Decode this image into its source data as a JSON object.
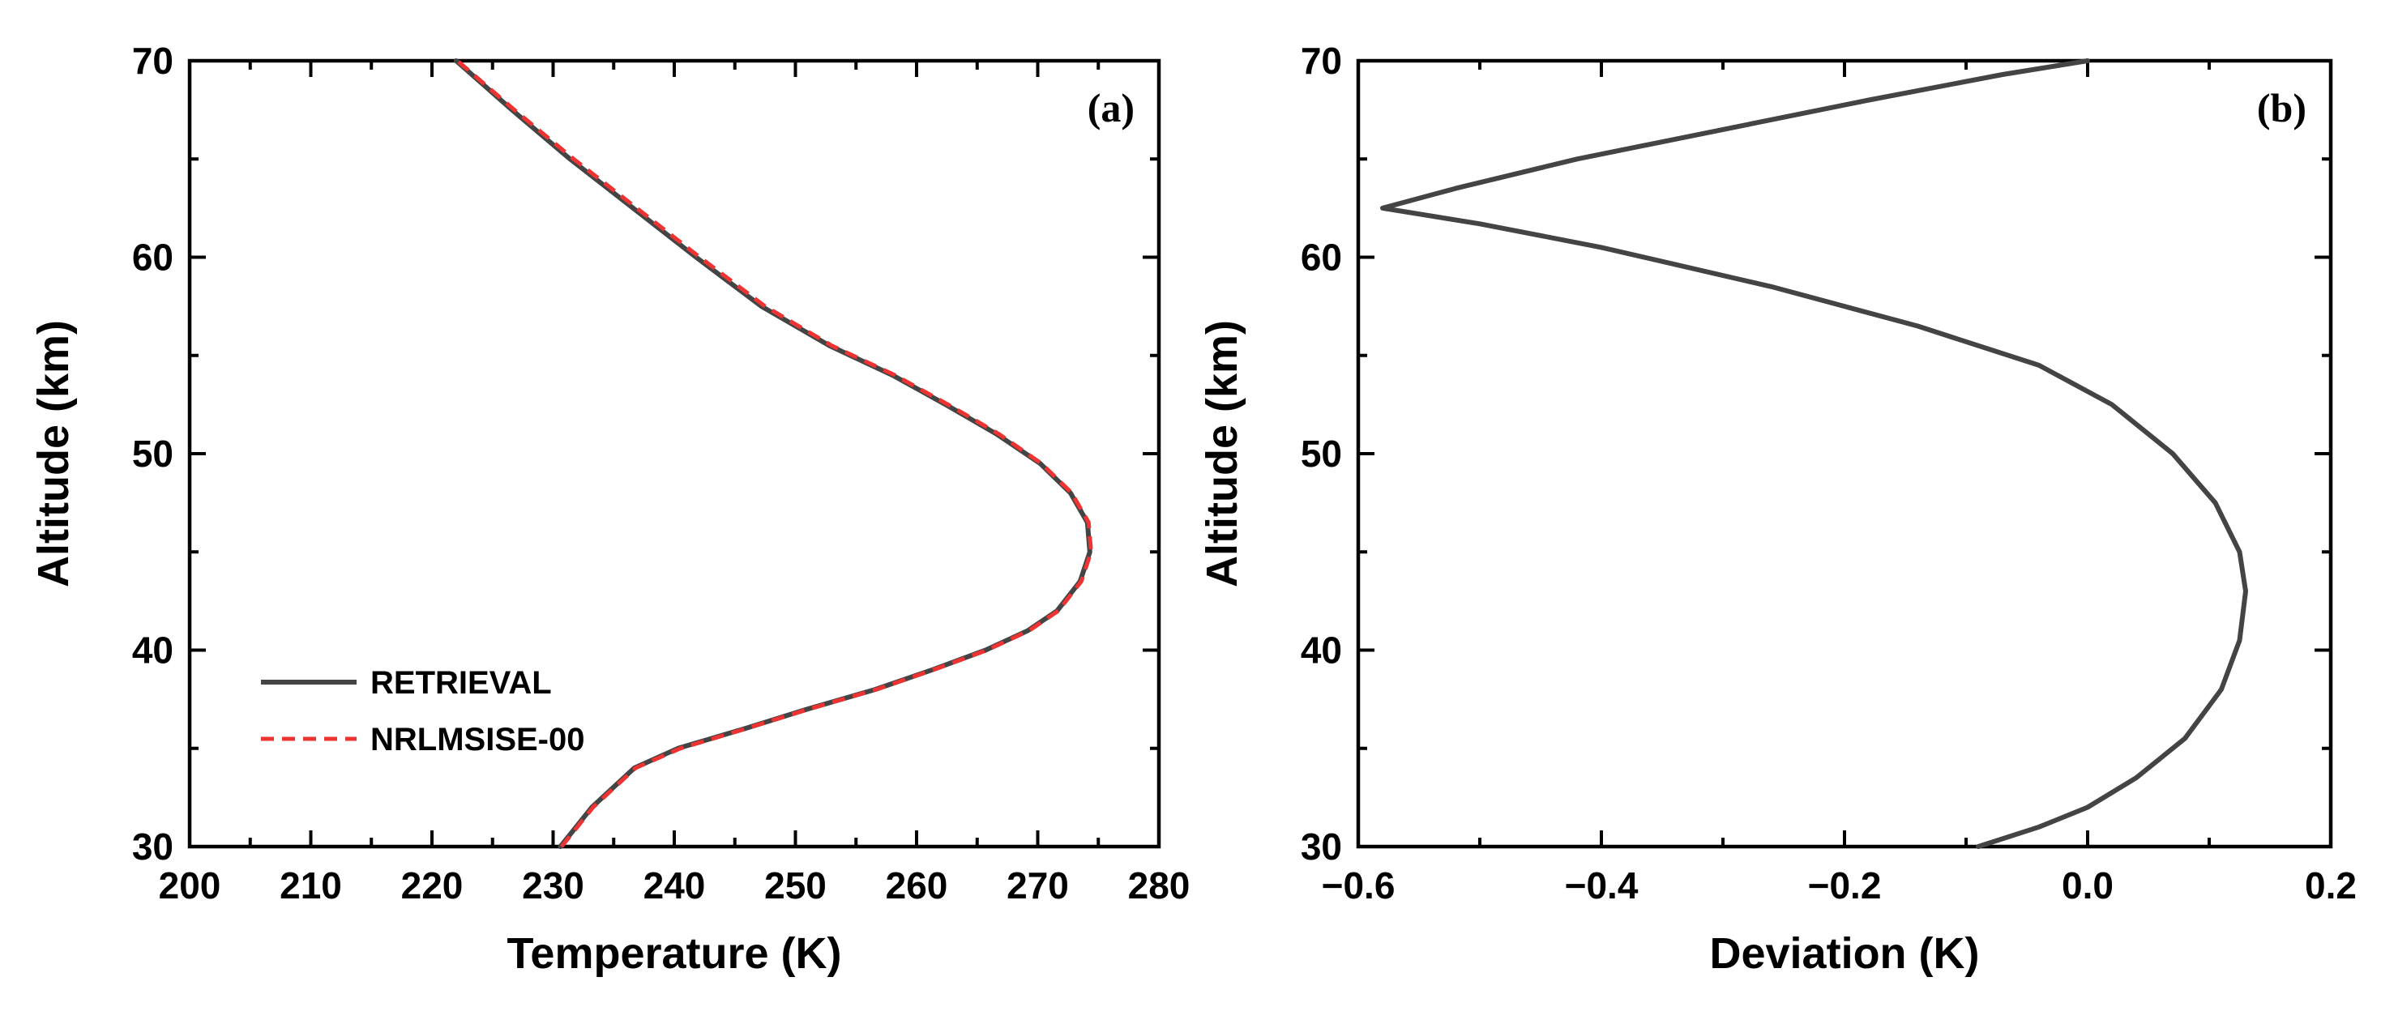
{
  "chart_data": [
    {
      "type": "line",
      "panel_label": "(a)",
      "xlabel": "Temperature (K)",
      "ylabel": "Altitude (km)",
      "xlim": [
        200,
        280
      ],
      "ylim": [
        30,
        70
      ],
      "xticks": [
        200,
        210,
        220,
        230,
        240,
        250,
        260,
        270,
        280
      ],
      "yticks": [
        30,
        40,
        50,
        60,
        70
      ],
      "legend_position": "lower-left",
      "series": [
        {
          "name": "RETRIEVAL",
          "color": "#444444",
          "style": "solid",
          "x": [
            230.6,
            233.2,
            236.7,
            240.3,
            245.8,
            251.0,
            256.6,
            261.3,
            265.7,
            269.2,
            271.6,
            273.5,
            274.3,
            274.1,
            272.7,
            270.2,
            266.6,
            262.4,
            258.0,
            252.8,
            247.2,
            241.8,
            236.6,
            231.4,
            226.6,
            222.0
          ],
          "y": [
            30,
            32,
            34,
            35,
            36,
            37,
            38,
            39,
            40,
            41,
            42,
            43.5,
            45,
            46.5,
            48,
            49.5,
            51,
            52.5,
            54,
            55.5,
            57.5,
            60,
            62.5,
            65,
            67.5,
            70
          ]
        },
        {
          "name": "NRLMSISE-00",
          "color": "#ee3333",
          "style": "dashed",
          "x": [
            230.7,
            233.3,
            236.8,
            240.5,
            245.9,
            251.1,
            256.7,
            261.4,
            265.8,
            269.3,
            271.7,
            273.6,
            274.4,
            274.2,
            272.8,
            270.3,
            266.8,
            262.6,
            258.2,
            253.0,
            247.5,
            242.1,
            236.9,
            231.7,
            226.8,
            222.1
          ],
          "y": [
            30,
            32,
            34,
            35,
            36,
            37,
            38,
            39,
            40,
            41,
            42,
            43.5,
            45,
            46.5,
            48,
            49.5,
            51,
            52.5,
            54,
            55.5,
            57.5,
            60,
            62.5,
            65,
            67.5,
            70
          ]
        }
      ]
    },
    {
      "type": "line",
      "panel_label": "(b)",
      "xlabel": "Deviation (K)",
      "ylabel": "Altitude (km)",
      "xlim": [
        -0.6,
        0.2
      ],
      "ylim": [
        30,
        70
      ],
      "xticks": [
        -0.6,
        -0.4,
        -0.2,
        0.0,
        0.2
      ],
      "xtick_labels": [
        "−0.6",
        "−0.4",
        "−0.2",
        "0.0",
        "0.2"
      ],
      "yticks": [
        30,
        40,
        50,
        60,
        70
      ],
      "series": [
        {
          "name": "Deviation",
          "color": "#444444",
          "style": "solid",
          "x": [
            -0.09,
            -0.04,
            0.0,
            0.04,
            0.08,
            0.11,
            0.125,
            0.13,
            0.125,
            0.105,
            0.07,
            0.02,
            -0.04,
            -0.14,
            -0.26,
            -0.4,
            -0.5,
            -0.58,
            -0.52,
            -0.42,
            -0.3,
            -0.18,
            -0.07,
            0.0
          ],
          "y": [
            30,
            31,
            32,
            33.5,
            35.5,
            38,
            40.5,
            43,
            45,
            47.5,
            50,
            52.5,
            54.5,
            56.5,
            58.5,
            60.5,
            61.7,
            62.5,
            63.5,
            65,
            66.5,
            68,
            69.3,
            70
          ]
        }
      ]
    }
  ]
}
